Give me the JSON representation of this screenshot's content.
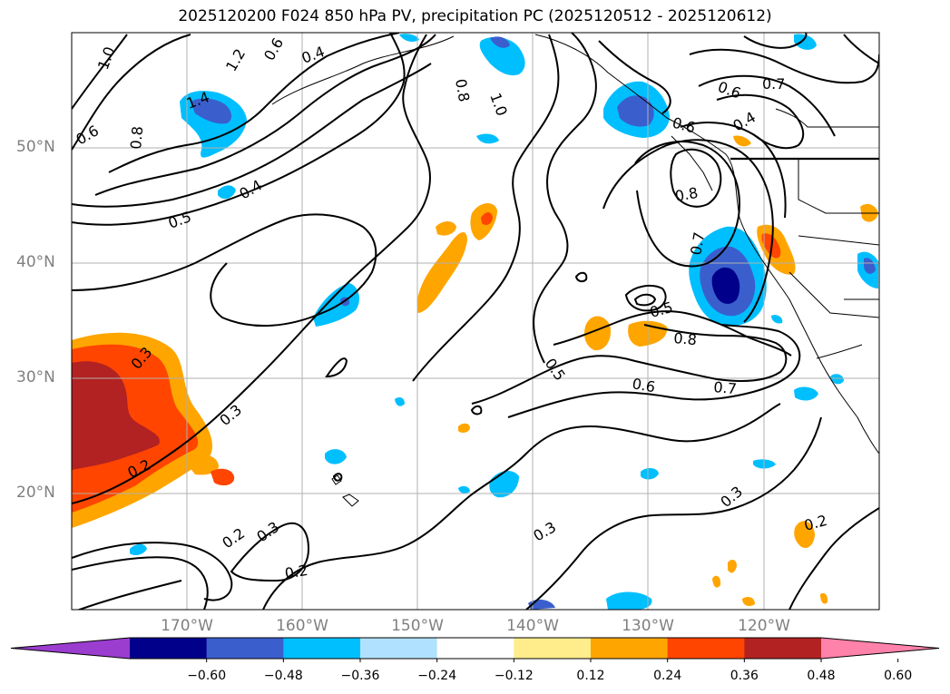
{
  "title": "2025120200 F024 850 hPa PV, precipitation PC (2025120512 - 2025120612)",
  "lat_labels": [
    "50°N",
    "40°N",
    "30°N",
    "20°N"
  ],
  "lon_labels": [
    "170°W",
    "160°W",
    "150°W",
    "140°W",
    "130°W",
    "120°W"
  ],
  "colorbar": {
    "ticks": [
      "−0.60",
      "−0.48",
      "−0.36",
      "−0.24",
      "−0.12",
      "0.12",
      "0.24",
      "0.36",
      "0.48",
      "0.60"
    ],
    "colors": [
      "#9b3dcf",
      "#00008b",
      "#3a5fcd",
      "#00bfff",
      "#b0e2ff",
      "#ffffff",
      "#ffec8b",
      "#ffa500",
      "#ff4500",
      "#b22222",
      "#ff82ab"
    ]
  },
  "contour_labels": [
    "1.0",
    "1.2",
    "0.8",
    "1.4",
    "0.6",
    "0.4",
    "0.8",
    "1.0",
    "0.6",
    "0.5",
    "0.4",
    "0.7",
    "0.4",
    "0.6",
    "0.8",
    "0.6",
    "0.7",
    "0.5",
    "0.3",
    "0.5",
    "0.8",
    "0.6",
    "0.7",
    "0.3",
    "0.2",
    "0.3",
    "0.3",
    "0.2",
    "0.3",
    "0.2",
    "0.2"
  ]
}
